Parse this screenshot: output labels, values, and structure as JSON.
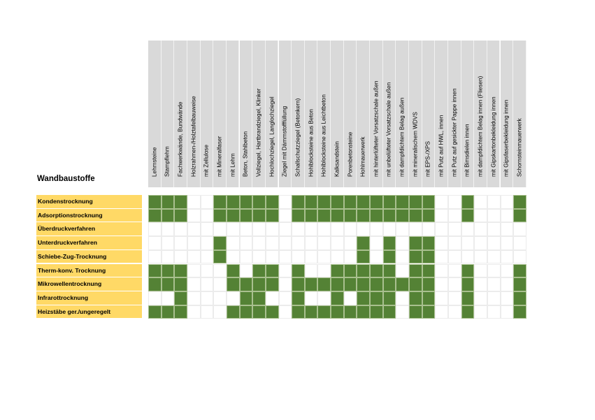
{
  "title": "Wandbaustoffe",
  "colors": {
    "marked": "#548235",
    "row_label": "#ffd966",
    "header": "#d9d9d9"
  },
  "columns": [
    "Lehmsteine",
    "Stampflehm",
    "Fachwerkwände, Bundwände",
    "Holzrahmen-/Holztafelbauweise",
    "mit Zellulose",
    "mit Mineralfaser",
    "mit Lehm",
    "Beton, Stahlbeton",
    "Vollziegel, Hartbrandziegel, Klinker",
    "Hochlochziegel, Langlochziegel",
    "Ziegel mit Dämmstofffüllung",
    "Schallschutzziegel (Betonkern)",
    "Hohlblocksteine aus Beton",
    "Hohlblocksteine aus Leichtbeton",
    "Kalksandstein",
    "Porenbetonsteine",
    "Hohlmauerwerk",
    "mit hinterlüfteter Vorsatzschale außen",
    "mit unbelüfteter Vorsatzschale außen",
    "mit dampfdichtem Belag außen",
    "mit mineralischem WDVS",
    "mit EPS-/XPS",
    "mit Putz auf HWL, innen",
    "mit Putz auf gesickter Pappe innen",
    "mit Bimsdielen innen",
    "mit dampfdichtem Belag innen (Fliesen)",
    "mit Gipskartonbekleidung innen",
    "mit Gipsfaserbekleidung innen",
    "Schornsteinmauerwerk"
  ],
  "rows": [
    {
      "label": "Kondenstrocknung",
      "marked": [
        0,
        1,
        2,
        5,
        6,
        7,
        8,
        9,
        11,
        12,
        13,
        14,
        15,
        16,
        17,
        18,
        19,
        20,
        21,
        24,
        28
      ]
    },
    {
      "label": "Adsorptionstrocknung",
      "marked": [
        0,
        1,
        2,
        5,
        6,
        7,
        8,
        9,
        11,
        12,
        13,
        14,
        15,
        16,
        17,
        18,
        19,
        20,
        21,
        24,
        28
      ]
    },
    {
      "label": "Überdruckverfahren",
      "marked": []
    },
    {
      "label": "Unterdruckverfahren",
      "marked": [
        5,
        16,
        18,
        20,
        21
      ]
    },
    {
      "label": "Schiebe-Zug-Trocknung",
      "marked": [
        5,
        16,
        18,
        20,
        21
      ]
    },
    {
      "label": "Therm-konv. Trocknung",
      "marked": [
        0,
        1,
        2,
        6,
        8,
        9,
        11,
        14,
        15,
        16,
        17,
        18,
        20,
        21,
        24,
        28
      ]
    },
    {
      "label": "Mikrowellentrocknung",
      "marked": [
        0,
        1,
        2,
        6,
        7,
        8,
        9,
        11,
        12,
        13,
        14,
        15,
        16,
        17,
        18,
        19,
        20,
        21,
        24,
        28
      ]
    },
    {
      "label": "Infrarottrocknung",
      "marked": [
        2,
        7,
        8,
        11,
        14,
        16,
        17,
        18,
        20,
        21,
        24,
        28
      ]
    },
    {
      "label": "Heizstäbe ger./ungeregelt",
      "marked": [
        0,
        1,
        2,
        6,
        7,
        8,
        9,
        11,
        12,
        13,
        14,
        15,
        16,
        17,
        18,
        20,
        21,
        24,
        28
      ]
    }
  ]
}
